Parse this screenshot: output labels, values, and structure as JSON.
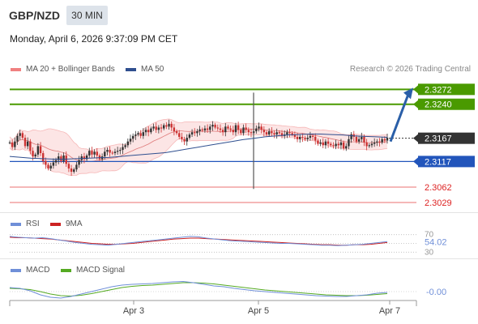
{
  "header": {
    "symbol": "GBP/NZD",
    "timeframe": "30 MIN",
    "datetime": "Monday, April 6, 2026 9:37:09 PM CET"
  },
  "legend": {
    "ma20": {
      "label": "MA 20 + Bollinger Bands",
      "color": "#f08080"
    },
    "ma50": {
      "label": "MA 50",
      "color": "#2f4f8f"
    },
    "credit": "Research © 2026 Trading Central"
  },
  "colors": {
    "resistance": "#4a9a00",
    "support": "#2255bb",
    "lower_support": "#f2a0a0",
    "label_red": "#dd2222",
    "current_price": "#333333",
    "arrow": "#2a5fa8",
    "candle_up": "#333333",
    "candle_down": "#cc3333",
    "band_fill": "#fbe0e0",
    "rsi": "#6f8fd8",
    "rsi_ma": "#cc2222",
    "macd": "#6f8fd8",
    "macd_signal": "#55aa22"
  },
  "chart_data": [
    {
      "type": "candlestick",
      "title": "GBP/NZD 30 MIN",
      "x_ticks": [
        "Apr 3",
        "Apr 5",
        "Apr 7"
      ],
      "ylim": [
        2.3015,
        2.329
      ],
      "levels": [
        {
          "value": 2.3272,
          "label": "2.3272",
          "kind": "resistance"
        },
        {
          "value": 2.324,
          "label": "2.3240",
          "kind": "resistance"
        },
        {
          "value": 2.3167,
          "label": "2.3167",
          "kind": "current"
        },
        {
          "value": 2.3117,
          "label": "2.3117",
          "kind": "support"
        },
        {
          "value": 2.3062,
          "label": "2.3062",
          "kind": "lower_support"
        },
        {
          "value": 2.3029,
          "label": "2.3029",
          "kind": "lower_support"
        }
      ],
      "projection": {
        "from": 2.316,
        "to": 2.3272,
        "direction": "up"
      },
      "close_series": [
        2.3158,
        2.3148,
        2.316,
        2.3172,
        2.3178,
        2.3168,
        2.315,
        2.316,
        2.314,
        2.3128,
        2.3132,
        2.315,
        2.3135,
        2.3118,
        2.311,
        2.3102,
        2.3108,
        2.3115,
        2.312,
        2.3128,
        2.3118,
        2.313,
        2.3112,
        2.3102,
        2.3095,
        2.31,
        2.311,
        2.312,
        2.3128,
        2.3122,
        2.313,
        2.314,
        2.3132,
        2.3138,
        2.313,
        2.3122,
        2.3128,
        2.3138,
        2.3142,
        2.3136,
        2.3135,
        2.3138,
        2.314,
        2.3142,
        2.3148,
        2.3152,
        2.316,
        2.3166,
        2.3172,
        2.3175,
        2.3178,
        2.3172,
        2.318,
        2.3185,
        2.318,
        2.3188,
        2.3192,
        2.3185,
        2.319,
        2.3188,
        2.3195,
        2.3192,
        2.3198,
        2.319,
        2.3182,
        2.3178,
        2.317,
        2.3165,
        2.316,
        2.3168,
        2.3175,
        2.318,
        2.3178,
        2.3182,
        2.3186,
        2.3184,
        2.3188,
        2.3185,
        2.3192,
        2.3196,
        2.319,
        2.3188,
        2.3185,
        2.318,
        2.3192,
        2.3188,
        2.3185,
        2.318,
        2.3195,
        2.3185,
        2.3178,
        2.319,
        2.3185,
        2.318,
        2.3178,
        2.3182,
        2.3188,
        2.3192,
        2.3185,
        2.318,
        2.3175,
        2.3182,
        2.3178,
        2.3175,
        2.318,
        2.3178,
        2.3172,
        2.3175,
        2.318,
        2.3178,
        2.3175,
        2.317,
        2.3165,
        2.317,
        2.3168,
        2.3165,
        2.3168,
        2.3172,
        2.317,
        2.3162,
        2.3155,
        2.3158,
        2.3152,
        2.316,
        2.3155,
        2.3152,
        2.315,
        2.3155,
        2.3152,
        2.3158,
        2.3145,
        2.315,
        2.3165,
        2.3175,
        2.317,
        2.316,
        2.3165,
        2.317,
        2.3158,
        2.315,
        2.3152,
        2.3155,
        2.3158,
        2.316,
        2.3158,
        2.3165,
        2.3162,
        2.3168
      ],
      "ma50_series": [
        2.3128,
        2.3126,
        2.3124,
        2.3123,
        2.3122,
        2.3122,
        2.3123,
        2.3124,
        2.3125,
        2.3126,
        2.3128,
        2.313,
        2.3132,
        2.3134,
        2.3136,
        2.314,
        2.3144,
        2.3148,
        2.3152,
        2.3156,
        2.316,
        2.3164,
        2.3167,
        2.317,
        2.3172,
        2.3174,
        2.3175,
        2.3176,
        2.3176,
        2.3175,
        2.3174,
        2.3172,
        2.3171,
        2.317,
        2.3169
      ],
      "spike": {
        "high": 2.3265,
        "low": 2.3058
      }
    },
    {
      "type": "line",
      "title": "RSI",
      "series": [
        {
          "name": "RSI"
        },
        {
          "name": "9MA"
        }
      ],
      "levels": [
        70,
        50,
        30
      ],
      "last_value": 54.02,
      "rsi_values": [
        66,
        64,
        63,
        62,
        63,
        61,
        58,
        55,
        52,
        50,
        48,
        47,
        46,
        48,
        50,
        52,
        54,
        56,
        58,
        60,
        62,
        64,
        66,
        65,
        62,
        60,
        58,
        56,
        55,
        54,
        53,
        52,
        51,
        50,
        50,
        49,
        48,
        47,
        46,
        46,
        45,
        46,
        47,
        48,
        50,
        52,
        54
      ],
      "ma_values": [
        64,
        63,
        63,
        62,
        61,
        60,
        58,
        56,
        54,
        52,
        50,
        49,
        48,
        48,
        49,
        50,
        52,
        54,
        56,
        58,
        60,
        61,
        62,
        62,
        61,
        60,
        59,
        58,
        57,
        56,
        55,
        54,
        53,
        52,
        51,
        50,
        49,
        48,
        47,
        47,
        46,
        46,
        47,
        47,
        48,
        50,
        52
      ]
    },
    {
      "type": "line",
      "title": "MACD",
      "series": [
        {
          "name": "MACD"
        },
        {
          "name": "MACD Signal"
        }
      ],
      "last_value": -0.0,
      "last_label": "-0.00",
      "macd_values": [
        0.001,
        0.0008,
        0.0002,
        -0.0008,
        -0.0014,
        -0.0016,
        -0.0012,
        -0.0006,
        0.0,
        0.0006,
        0.0012,
        0.0016,
        0.0018,
        0.0019,
        0.002,
        0.0022,
        0.0024,
        0.0025,
        0.0022,
        0.0018,
        0.0014,
        0.0012,
        0.0008,
        0.0005,
        0.0002,
        0.0,
        -0.0002,
        -0.0004,
        -0.0006,
        -0.0008,
        -0.001,
        -0.0011,
        -0.0012,
        -0.0012,
        -0.001,
        -0.0008,
        -0.0004,
        -0.0002
      ],
      "signal_values": [
        0.0008,
        0.0007,
        0.0005,
        0.0,
        -0.0006,
        -0.001,
        -0.0011,
        -0.0009,
        -0.0005,
        0.0,
        0.0005,
        0.001,
        0.0013,
        0.0015,
        0.0016,
        0.0018,
        0.002,
        0.0022,
        0.0022,
        0.0021,
        0.0019,
        0.0016,
        0.0013,
        0.001,
        0.0007,
        0.0004,
        0.0002,
        0.0,
        -0.0002,
        -0.0004,
        -0.0006,
        -0.0008,
        -0.0009,
        -0.001,
        -0.001,
        -0.0009,
        -0.0007,
        -0.0005
      ]
    }
  ]
}
